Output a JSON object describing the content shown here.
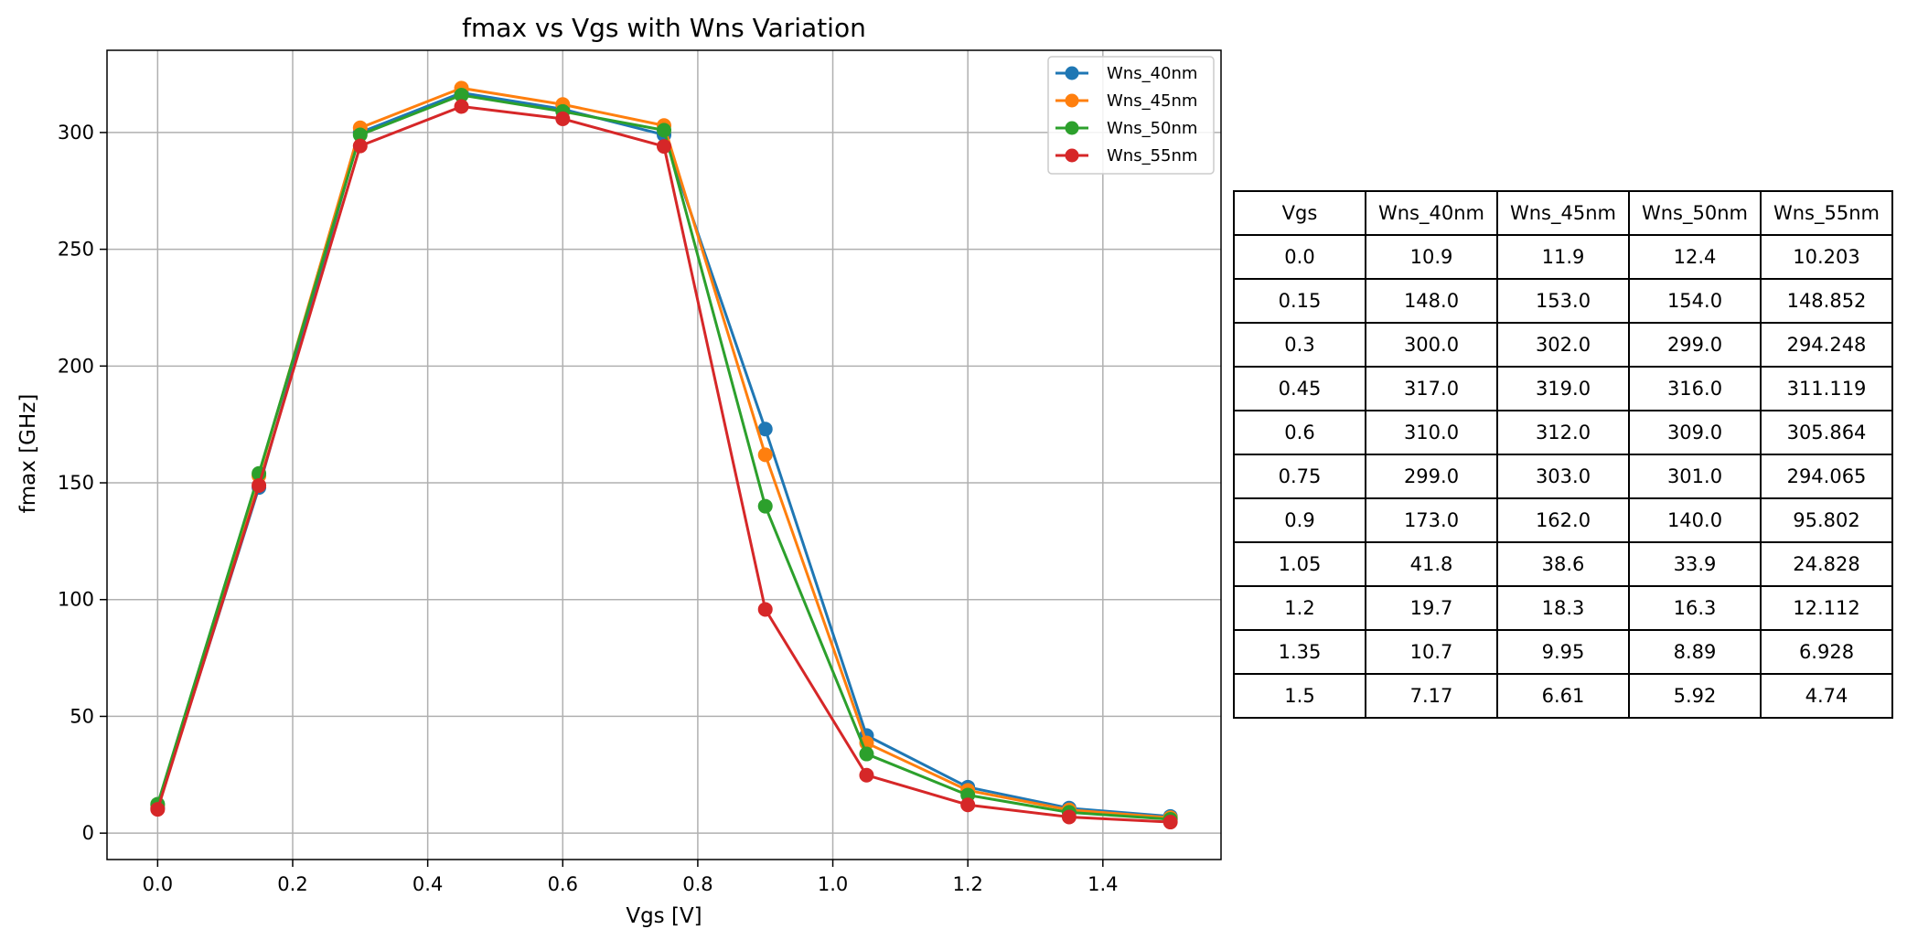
{
  "chart_data": {
    "type": "line",
    "title": "fmax vs Vgs with Wns Variation",
    "xlabel": "Vgs [V]",
    "ylabel": "fmax [GHz]",
    "xlim": [
      -0.075,
      1.575
    ],
    "ylim": [
      -11.3,
      335.2
    ],
    "xticks": [
      0.0,
      0.2,
      0.4,
      0.6,
      0.8,
      1.0,
      1.2,
      1.4
    ],
    "xtick_labels": [
      "0.0",
      "0.2",
      "0.4",
      "0.6",
      "0.8",
      "1.0",
      "1.2",
      "1.4"
    ],
    "yticks": [
      0,
      50,
      100,
      150,
      200,
      250,
      300
    ],
    "ytick_labels": [
      "0",
      "50",
      "100",
      "150",
      "200",
      "250",
      "300"
    ],
    "grid": true,
    "legend_position": "top-right",
    "marker": "circle",
    "x": [
      0.0,
      0.15,
      0.3,
      0.45,
      0.6,
      0.75,
      0.9,
      1.05,
      1.2,
      1.35,
      1.5
    ],
    "series": [
      {
        "name": "Wns_40nm",
        "color": "#1f77b4",
        "values": [
          10.9,
          148.0,
          300.0,
          317.0,
          310.0,
          299.0,
          173.0,
          41.8,
          19.7,
          10.7,
          7.17
        ]
      },
      {
        "name": "Wns_45nm",
        "color": "#ff7f0e",
        "values": [
          11.9,
          153.0,
          302.0,
          319.0,
          312.0,
          303.0,
          162.0,
          38.6,
          18.3,
          9.95,
          6.61
        ]
      },
      {
        "name": "Wns_50nm",
        "color": "#2ca02c",
        "values": [
          12.4,
          154.0,
          299.0,
          316.0,
          309.0,
          301.0,
          140.0,
          33.9,
          16.3,
          8.89,
          5.92
        ]
      },
      {
        "name": "Wns_55nm",
        "color": "#d62728",
        "values": [
          10.203,
          148.852,
          294.248,
          311.119,
          305.864,
          294.065,
          95.802,
          24.828,
          12.112,
          6.928,
          4.74
        ]
      }
    ]
  },
  "table": {
    "header": [
      "Vgs",
      "Wns_40nm",
      "Wns_45nm",
      "Wns_50nm",
      "Wns_55nm"
    ],
    "rows": [
      [
        "0.0",
        "10.9",
        "11.9",
        "12.4",
        "10.203"
      ],
      [
        "0.15",
        "148.0",
        "153.0",
        "154.0",
        "148.852"
      ],
      [
        "0.3",
        "300.0",
        "302.0",
        "299.0",
        "294.248"
      ],
      [
        "0.45",
        "317.0",
        "319.0",
        "316.0",
        "311.119"
      ],
      [
        "0.6",
        "310.0",
        "312.0",
        "309.0",
        "305.864"
      ],
      [
        "0.75",
        "299.0",
        "303.0",
        "301.0",
        "294.065"
      ],
      [
        "0.9",
        "173.0",
        "162.0",
        "140.0",
        "95.802"
      ],
      [
        "1.05",
        "41.8",
        "38.6",
        "33.9",
        "24.828"
      ],
      [
        "1.2",
        "19.7",
        "18.3",
        "16.3",
        "12.112"
      ],
      [
        "1.35",
        "10.7",
        "9.95",
        "8.89",
        "6.928"
      ],
      [
        "1.5",
        "7.17",
        "6.61",
        "5.92",
        "4.74"
      ]
    ]
  }
}
